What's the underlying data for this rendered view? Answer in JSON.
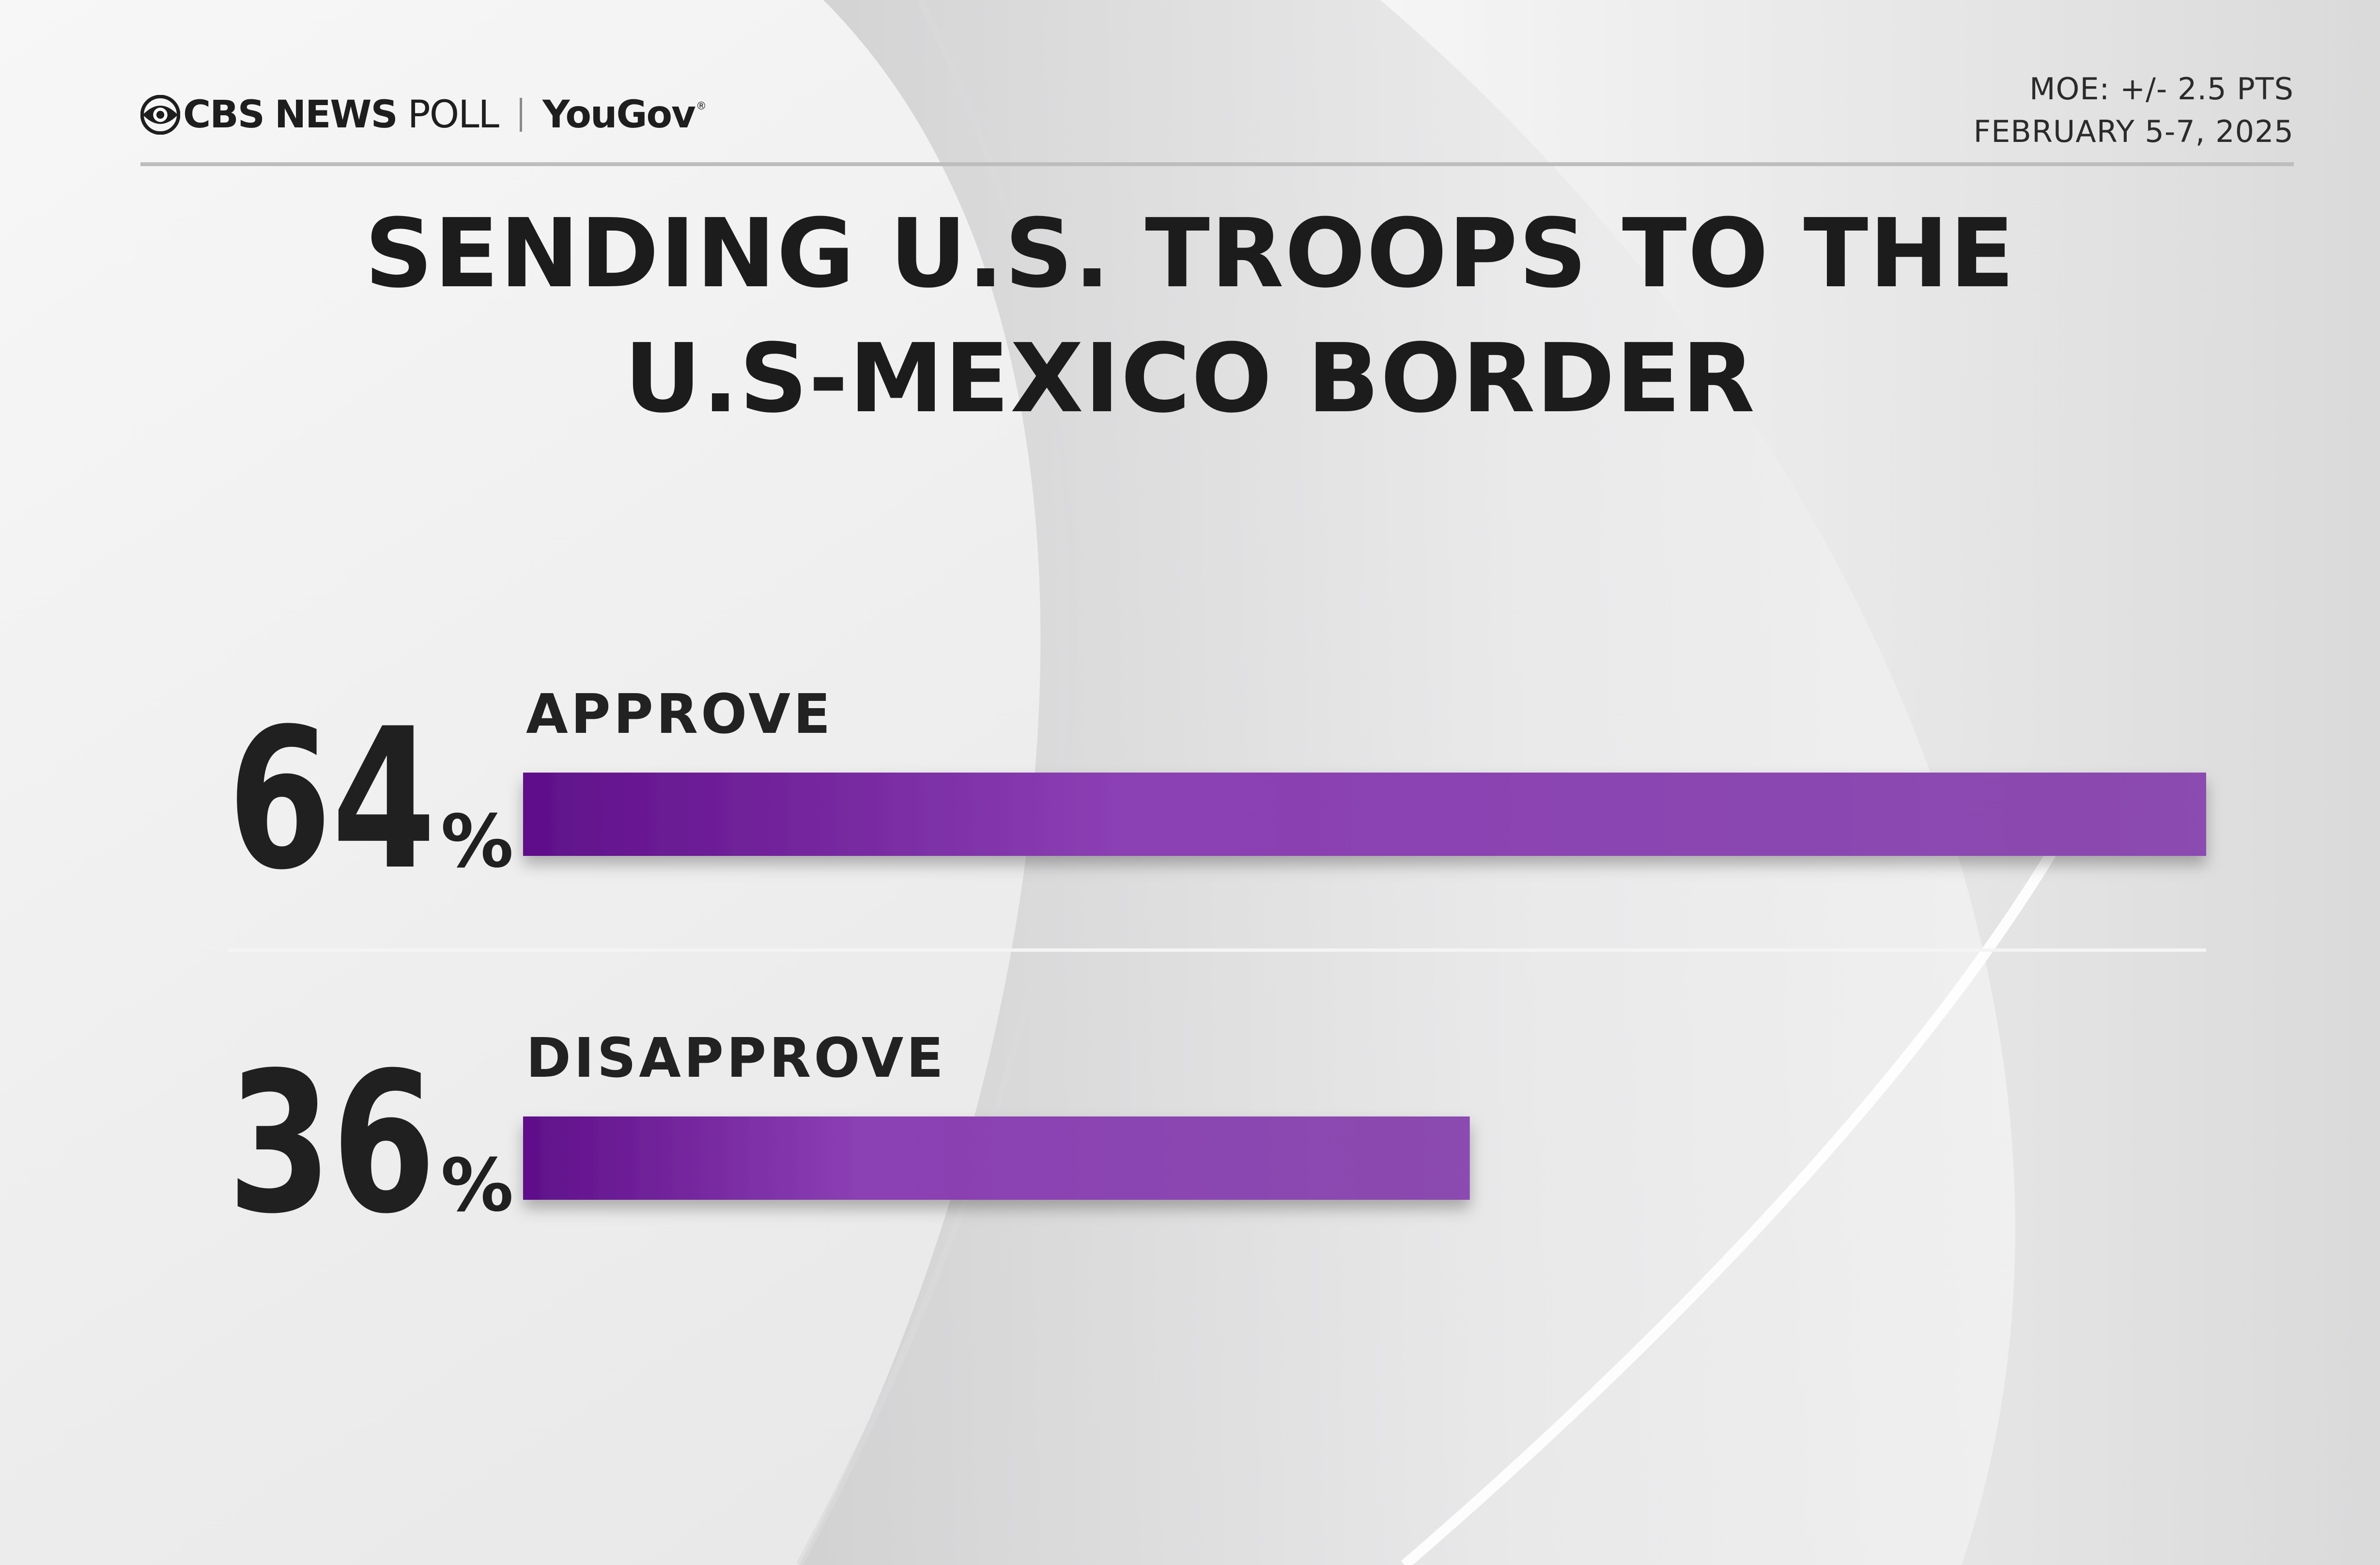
{
  "header": {
    "brand_cbs": "CBS",
    "brand_news": "NEWS",
    "brand_poll": "POLL",
    "brand_yougov": "YouGov",
    "brand_yougov_mark": "®",
    "moe": "MOE: +/- 2.5 PTS",
    "date": "FEBRUARY 5-7, 2025"
  },
  "chart_data": {
    "type": "bar",
    "orientation": "horizontal",
    "title": "SENDING U.S. TROOPS TO THE U.S-MEXICO BORDER",
    "title_lines": [
      "SENDING U.S. TROOPS TO THE",
      "U.S-MEXICO BORDER"
    ],
    "categories": [
      "APPROVE",
      "DISAPPROVE"
    ],
    "values": [
      64,
      36
    ],
    "value_labels": [
      "64",
      "36"
    ],
    "value_suffix": "%",
    "xlim": [
      0,
      64
    ],
    "grid": false,
    "legend": "none",
    "colors": {
      "bar_start": "#5f0f8a",
      "bar_mid": "#8b3fb3",
      "bar_end": "#8b4bb0",
      "divider": "#f4f4f4"
    }
  }
}
